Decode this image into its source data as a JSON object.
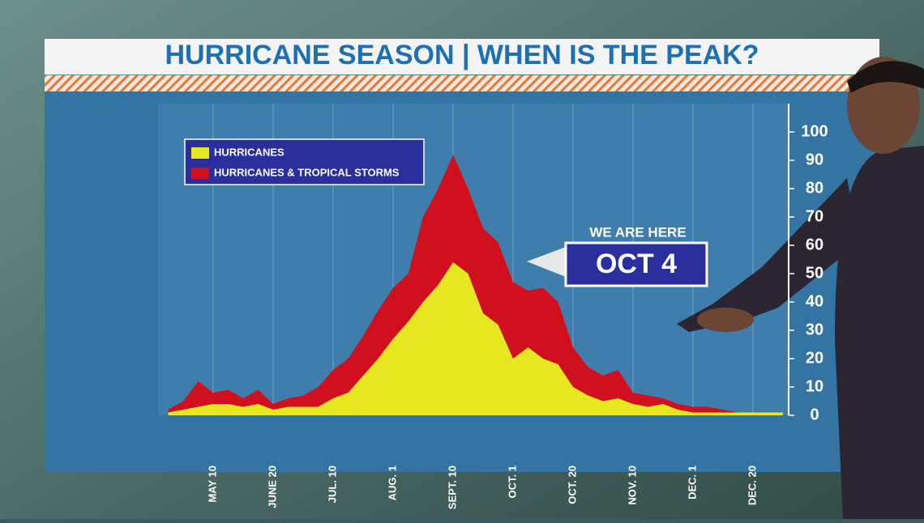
{
  "chart_data": {
    "type": "area",
    "title": "HURRICANE SEASON | WHEN IS THE PEAK?",
    "annotations": [
      "WE ARE HERE",
      "OCT 4"
    ],
    "categories": [
      null,
      null,
      null,
      "MAY 10",
      null,
      null,
      null,
      "JUNE 20",
      null,
      null,
      null,
      "JUL. 10",
      null,
      null,
      null,
      "AUG. 1",
      null,
      null,
      null,
      "SEPT. 10",
      null,
      null,
      null,
      "OCT. 1",
      null,
      null,
      null,
      "OCT. 20",
      null,
      null,
      null,
      "NOV. 10",
      null,
      null,
      null,
      "DEC. 1",
      null,
      null,
      null,
      "DEC. 20",
      null,
      null
    ],
    "series": [
      {
        "name": "HURRICANES & TROPICAL STORMS",
        "color": "#d0101e",
        "values": [
          2,
          5,
          12,
          8,
          9,
          6,
          9,
          4,
          6,
          7,
          10,
          16,
          20,
          28,
          37,
          45,
          50,
          70,
          80,
          92,
          80,
          66,
          61,
          47,
          44,
          45,
          40,
          24,
          17,
          14,
          16,
          8,
          7,
          6,
          4,
          3,
          3,
          2,
          1,
          1,
          1,
          1
        ]
      },
      {
        "name": "HURRICANES",
        "color": "#e6e621",
        "values": [
          1,
          2,
          3,
          4,
          4,
          3,
          4,
          2,
          3,
          3,
          3,
          6,
          8,
          14,
          20,
          27,
          33,
          40,
          46,
          54,
          50,
          36,
          32,
          20,
          24,
          20,
          18,
          10,
          7,
          5,
          6,
          4,
          3,
          4,
          2,
          1,
          1,
          1,
          1,
          1,
          1,
          1
        ]
      }
    ],
    "ylim": [
      0,
      110
    ],
    "yticks": [
      0,
      10,
      20,
      30,
      40,
      50,
      60,
      70,
      80,
      90,
      100
    ],
    "grid": true
  }
}
